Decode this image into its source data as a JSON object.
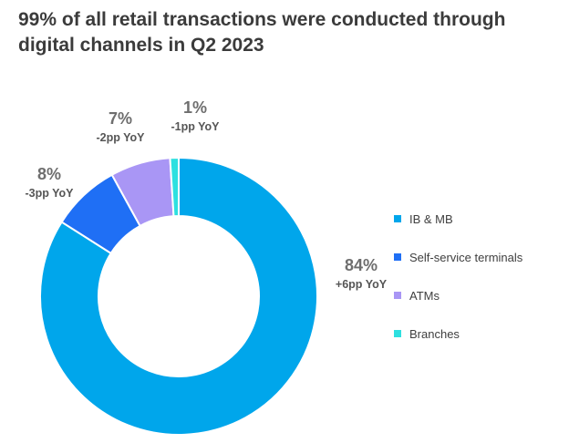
{
  "title": "99% of all retail transactions were conducted through digital channels in Q2 2023",
  "chart_data": {
    "type": "pie",
    "donut": true,
    "categories": [
      "IB & MB",
      "Self-service terminals",
      "ATMs",
      "Branches"
    ],
    "values": [
      84,
      8,
      7,
      1
    ],
    "value_labels": [
      "84%",
      "8%",
      "7%",
      "1%"
    ],
    "yoy_labels": [
      "+6pp YoY",
      "-3pp YoY",
      "-2pp YoY",
      "-1pp YoY"
    ],
    "colors": [
      "#00a6eb",
      "#1f6ff5",
      "#a996f5",
      "#2ee0e0"
    ],
    "legend_position": "right"
  }
}
